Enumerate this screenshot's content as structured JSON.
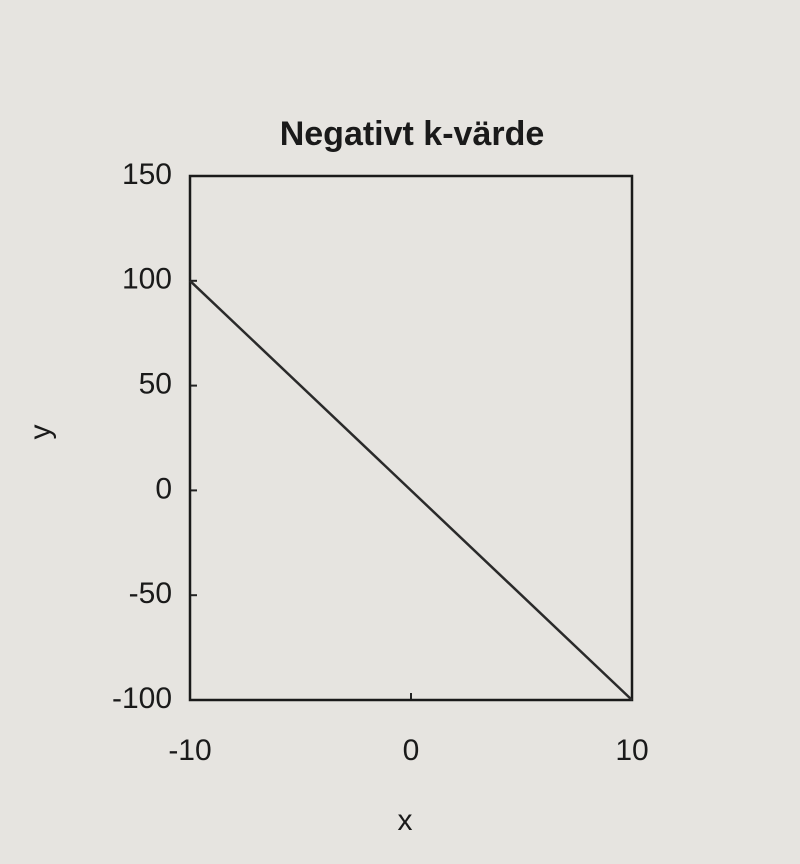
{
  "chart_data": {
    "type": "line",
    "title": "Negativt k-värde",
    "x_label": "x",
    "y_label": "y",
    "x": [
      -10,
      10
    ],
    "values": [
      100,
      -100
    ],
    "color": "#2a2a2a",
    "xlim": [
      -10,
      10
    ],
    "xticks": [
      -10,
      0,
      10
    ],
    "ylim": [
      -100,
      150
    ],
    "yticks": [
      -100,
      -50,
      0,
      50,
      100,
      150
    ]
  }
}
